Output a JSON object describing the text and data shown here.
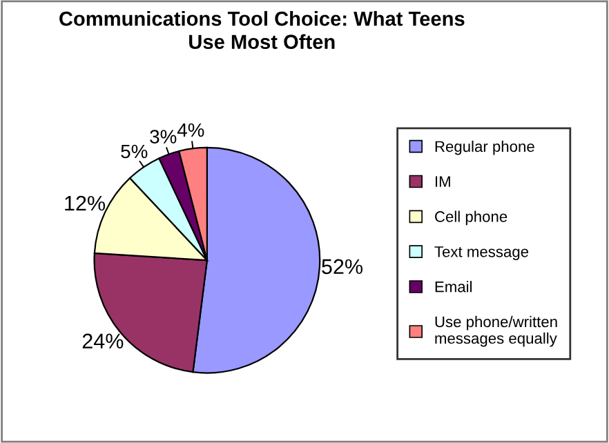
{
  "chart_data": {
    "type": "pie",
    "title": "Communications Tool Choice: What Teens Use Most Often",
    "categories": [
      "Regular phone",
      "IM",
      "Cell phone",
      "Text message",
      "Email",
      "Use phone/written messages equally"
    ],
    "values": [
      52,
      24,
      12,
      5,
      3,
      4
    ],
    "colors": [
      "#9999ff",
      "#993366",
      "#ffffcc",
      "#ccffff",
      "#660066",
      "#ff8080"
    ],
    "value_labels": [
      "52%",
      "24%",
      "12%",
      "5%",
      "3%",
      "4%"
    ],
    "legend": "right"
  }
}
